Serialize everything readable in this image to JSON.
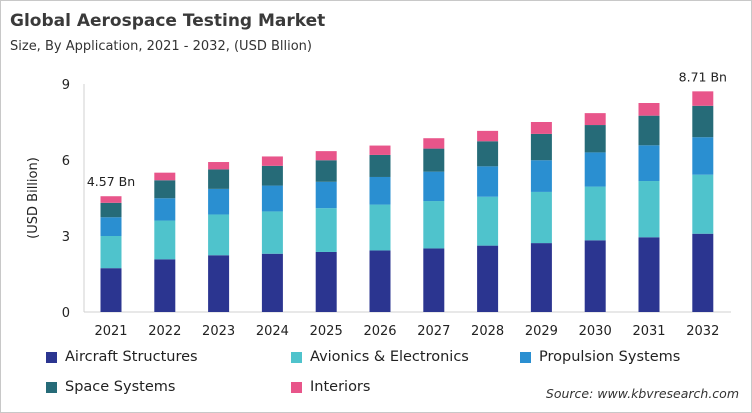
{
  "chart_data": {
    "type": "bar",
    "stacked": true,
    "title": "Global Aerospace Testing Market",
    "subtitle": "Size, By Application, 2021 - 2032, (USD Bllion)",
    "xlabel": "",
    "ylabel": "(USD Billion)",
    "ylim": [
      0,
      9
    ],
    "yticks": [
      0,
      3,
      6,
      9
    ],
    "grid": false,
    "legend_position": "bottom",
    "categories": [
      "2021",
      "2022",
      "2023",
      "2024",
      "2025",
      "2026",
      "2027",
      "2028",
      "2029",
      "2030",
      "2031",
      "2032"
    ],
    "series": [
      {
        "name": "Aircraft Structures",
        "color": "#2b3590",
        "values": [
          1.73,
          2.08,
          2.24,
          2.3,
          2.37,
          2.43,
          2.51,
          2.62,
          2.72,
          2.83,
          2.95,
          3.09
        ]
      },
      {
        "name": "Avionics & Electronics",
        "color": "#4fc3cc",
        "values": [
          1.27,
          1.53,
          1.61,
          1.67,
          1.73,
          1.81,
          1.87,
          1.93,
          2.02,
          2.12,
          2.22,
          2.33
        ]
      },
      {
        "name": "Propulsion Systems",
        "color": "#2a8fd1",
        "values": [
          0.74,
          0.88,
          1.01,
          1.02,
          1.04,
          1.09,
          1.16,
          1.2,
          1.25,
          1.35,
          1.41,
          1.48
        ]
      },
      {
        "name": "Space Systems",
        "color": "#266b78",
        "values": [
          0.57,
          0.71,
          0.77,
          0.78,
          0.85,
          0.87,
          0.91,
          0.99,
          1.04,
          1.08,
          1.17,
          1.24
        ]
      },
      {
        "name": "Interiors",
        "color": "#e8558a",
        "values": [
          0.26,
          0.3,
          0.29,
          0.37,
          0.36,
          0.37,
          0.41,
          0.41,
          0.47,
          0.47,
          0.5,
          0.57
        ]
      }
    ],
    "annotations": [
      {
        "category": "2021",
        "text": "4.57 Bn"
      },
      {
        "category": "2032",
        "text": "8.71 Bn"
      }
    ],
    "source": "Source: www.kbvresearch.com"
  }
}
